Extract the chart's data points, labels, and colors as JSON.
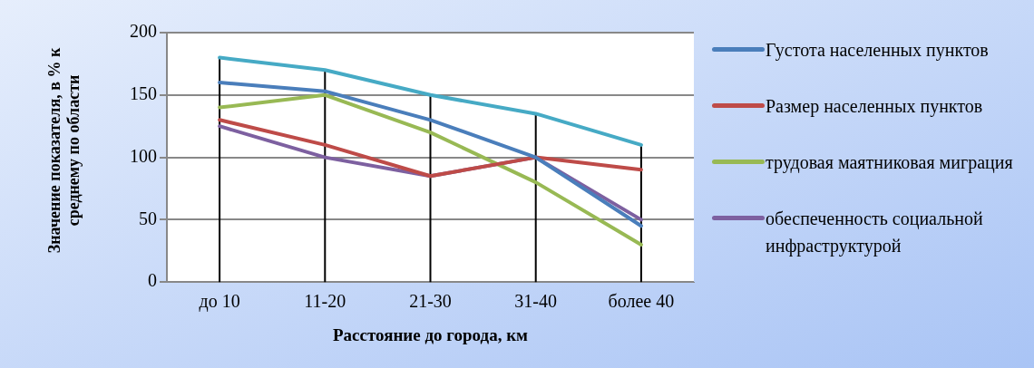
{
  "chart_data": {
    "type": "line",
    "xlabel": "Расстояние до города, км",
    "ylabel": "Значение показателя, в % к среднему по области",
    "categories": [
      "до 10",
      "11-20",
      "21-30",
      "31-40",
      "более 40"
    ],
    "series": [
      {
        "name": "Густота населенных пунктов",
        "color": "#4a7ebb",
        "values": [
          160,
          153,
          130,
          100,
          45
        ]
      },
      {
        "name": "Размер населенных пунктов",
        "color": "#be4b48",
        "values": [
          130,
          110,
          85,
          100,
          90
        ]
      },
      {
        "name": "трудовая маятниковая миграция",
        "color": "#98b954",
        "values": [
          140,
          150,
          120,
          80,
          30
        ]
      },
      {
        "name": "обеспеченность социальной инфраструктурой",
        "color": "#7d60a0",
        "values": [
          125,
          100,
          85,
          100,
          50
        ]
      },
      {
        "color": "#46aac5",
        "values": [
          180,
          170,
          150,
          135,
          110
        ]
      }
    ],
    "ylim": [
      0,
      200
    ],
    "yticks": [
      0,
      50,
      100,
      150,
      200
    ],
    "grid": "y",
    "legend": "right",
    "marker": "none",
    "ref_lines": [
      {
        "axis": "x",
        "value": "до 10",
        "color": "#000000"
      },
      {
        "axis": "x",
        "value": "11-20",
        "color": "#000000"
      },
      {
        "axis": "x",
        "value": "21-30",
        "color": "#000000"
      },
      {
        "axis": "x",
        "value": "31-40",
        "color": "#000000"
      },
      {
        "axis": "x",
        "value": "более 40",
        "color": "#000000"
      }
    ]
  }
}
